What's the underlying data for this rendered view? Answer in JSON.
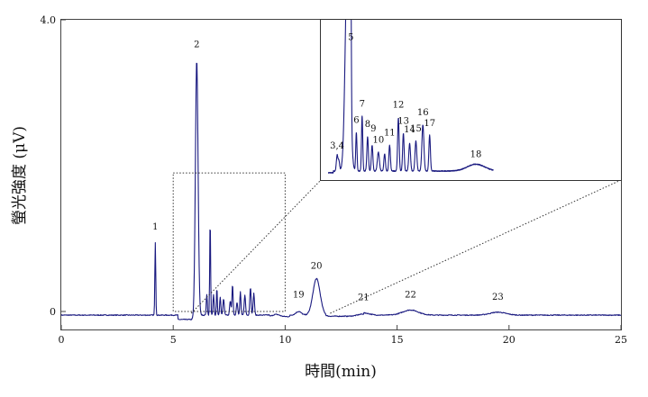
{
  "chart_data": {
    "type": "line",
    "title": "",
    "xlabel": "時間(min)",
    "ylabel": "螢光強度 (μV)",
    "xlim": [
      0,
      25
    ],
    "ylim": [
      -0.3,
      4.0
    ],
    "x_ticks": [
      0,
      5,
      10,
      15,
      20,
      25
    ],
    "y_ticks": [
      {
        "value": 4.0,
        "label": "4.0"
      },
      {
        "value": 0,
        "label": "0"
      }
    ],
    "grid": false,
    "line_color": "#1a1a80",
    "peaks": [
      {
        "label": "1",
        "x": 4.2,
        "y": 1.0
      },
      {
        "label": "2",
        "x": 6.05,
        "y": 3.5
      },
      {
        "label": "19",
        "x": 10.6,
        "y": 0.07
      },
      {
        "label": "20",
        "x": 11.4,
        "y": 0.46
      },
      {
        "label": "21",
        "x": 13.5,
        "y": 0.03
      },
      {
        "label": "22",
        "x": 15.6,
        "y": 0.07
      },
      {
        "label": "23",
        "x": 19.5,
        "y": 0.04
      }
    ],
    "zoom_region": {
      "x": [
        5,
        10
      ],
      "y": [
        0,
        1.9
      ]
    },
    "inset": {
      "xlim": [
        5,
        10
      ],
      "peaks": [
        {
          "label": "3,4",
          "x": 5.65,
          "y": 0.18
        },
        {
          "label": "5",
          "x": 6.2,
          "y": 1.45
        },
        {
          "label": "6",
          "x": 6.42,
          "y": 0.48
        },
        {
          "label": "7",
          "x": 6.65,
          "y": 0.67
        },
        {
          "label": "8",
          "x": 6.87,
          "y": 0.43
        },
        {
          "label": "9",
          "x": 7.1,
          "y": 0.38
        },
        {
          "label": "10",
          "x": 7.3,
          "y": 0.25
        },
        {
          "label": "11",
          "x": 7.75,
          "y": 0.33
        },
        {
          "label": "12",
          "x": 8.1,
          "y": 0.66
        },
        {
          "label": "13",
          "x": 8.3,
          "y": 0.47
        },
        {
          "label": "14",
          "x": 8.55,
          "y": 0.37
        },
        {
          "label": "15",
          "x": 8.8,
          "y": 0.38
        },
        {
          "label": "16",
          "x": 9.08,
          "y": 0.57
        },
        {
          "label": "17",
          "x": 9.35,
          "y": 0.44
        },
        {
          "label": "18",
          "x": 11.2,
          "y": 0.08
        }
      ]
    }
  }
}
